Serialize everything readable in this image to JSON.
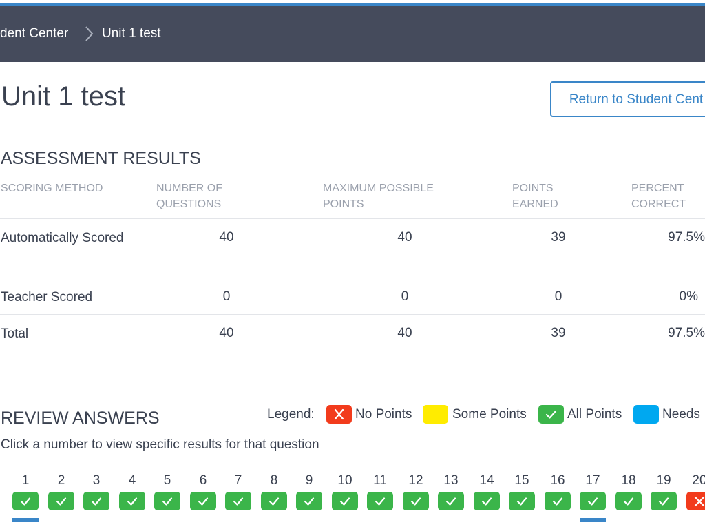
{
  "breadcrumb": {
    "parent": "dent Center",
    "current": "Unit 1 test"
  },
  "page_title": "Unit 1 test",
  "return_button": "Return to Student Cent",
  "assessment": {
    "heading": "ASSESSMENT RESULTS",
    "columns": [
      "SCORING METHOD",
      "NUMBER OF QUESTIONS",
      "MAXIMUM POSSIBLE POINTS",
      "POINTS EARNED",
      "PERCENT CORRECT"
    ],
    "rows": [
      {
        "method": "Automatically Scored",
        "questions": "40",
        "max_points": "40",
        "earned": "39",
        "percent": "97.5%"
      },
      {
        "method": "Teacher Scored",
        "questions": "0",
        "max_points": "0",
        "earned": "0",
        "percent": "0%"
      },
      {
        "method": "Total",
        "questions": "40",
        "max_points": "40",
        "earned": "39",
        "percent": "97.5%"
      }
    ]
  },
  "review": {
    "heading": "REVIEW ANSWERS",
    "instructions": "Click a number to view specific results for that question",
    "legend_label": "Legend:",
    "legend": [
      {
        "label": "No Points",
        "color": "#f23b1c",
        "icon": "x-icon"
      },
      {
        "label": "Some Points",
        "color": "#ffec00",
        "icon": ""
      },
      {
        "label": "All Points",
        "color": "#3bb54a",
        "icon": "check-icon"
      },
      {
        "label": "Needs",
        "color": "#00a8f0",
        "icon": ""
      }
    ],
    "questions": [
      {
        "number": "1",
        "status": "all",
        "selected": true
      },
      {
        "number": "2",
        "status": "all",
        "selected": false
      },
      {
        "number": "3",
        "status": "all",
        "selected": false
      },
      {
        "number": "4",
        "status": "all",
        "selected": false
      },
      {
        "number": "5",
        "status": "all",
        "selected": false
      },
      {
        "number": "6",
        "status": "all",
        "selected": false
      },
      {
        "number": "7",
        "status": "all",
        "selected": false
      },
      {
        "number": "8",
        "status": "all",
        "selected": false
      },
      {
        "number": "9",
        "status": "all",
        "selected": false
      },
      {
        "number": "10",
        "status": "all",
        "selected": false
      },
      {
        "number": "11",
        "status": "all",
        "selected": false
      },
      {
        "number": "12",
        "status": "all",
        "selected": false
      },
      {
        "number": "13",
        "status": "all",
        "selected": false
      },
      {
        "number": "14",
        "status": "all",
        "selected": false
      },
      {
        "number": "15",
        "status": "all",
        "selected": false
      },
      {
        "number": "16",
        "status": "all",
        "selected": false
      },
      {
        "number": "17",
        "status": "all",
        "selected": true
      },
      {
        "number": "18",
        "status": "all",
        "selected": false
      },
      {
        "number": "19",
        "status": "all",
        "selected": false
      },
      {
        "number": "20",
        "status": "none",
        "selected": false
      }
    ]
  },
  "colors": {
    "navbar": "#454b5c",
    "accent": "#3a86c8",
    "text": "#3a4150",
    "muted": "#9aa0ac"
  }
}
